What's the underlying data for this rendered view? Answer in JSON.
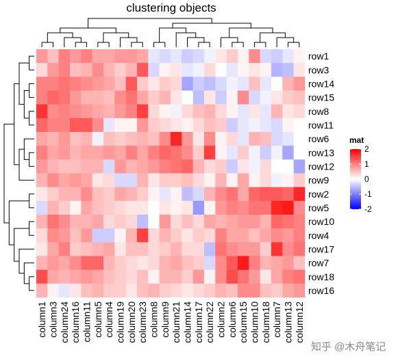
{
  "chart_data": {
    "type": "heatmap",
    "title": "clustering objects",
    "rows": [
      "row1",
      "row3",
      "row14",
      "row15",
      "row8",
      "row11",
      "row6",
      "row13",
      "row12",
      "row9",
      "row2",
      "row5",
      "row10",
      "row4",
      "row17",
      "row7",
      "row18",
      "row16"
    ],
    "columns": [
      "column1",
      "column3",
      "column24",
      "column16",
      "column11",
      "column5",
      "column4",
      "column19",
      "column20",
      "column23",
      "column8",
      "column9",
      "column21",
      "column14",
      "column17",
      "column22",
      "column2",
      "column6",
      "column15",
      "column10",
      "column18",
      "column7",
      "column13",
      "column12"
    ],
    "values": [
      [
        0.8,
        0.5,
        1.0,
        0.8,
        1.0,
        0.7,
        0.7,
        0.8,
        0.8,
        0.7,
        -0.2,
        -0.3,
        -0.2,
        -0.4,
        -0.3,
        -0.1,
        0.2,
        0.4,
        0.1,
        0.9,
        -0.3,
        -0.4,
        -0.2,
        0.1
      ],
      [
        0.3,
        0.8,
        1.0,
        0.5,
        0.6,
        0.9,
        0.6,
        0.4,
        0.6,
        1.3,
        -0.3,
        0.1,
        0.2,
        -0.2,
        -0.1,
        0.3,
        0.0,
        -0.2,
        0.1,
        0.2,
        0.1,
        -0.6,
        -0.5,
        0.2
      ],
      [
        1.0,
        1.0,
        1.1,
        1.0,
        0.9,
        0.8,
        0.7,
        0.5,
        1.3,
        0.4,
        0.2,
        0.4,
        0.3,
        -0.7,
        -0.4,
        -0.5,
        -0.3,
        -0.1,
        -0.2,
        0.5,
        -0.2,
        0.0,
        0.6,
        0.8
      ],
      [
        1.0,
        1.2,
        1.1,
        0.8,
        0.6,
        0.6,
        0.5,
        0.9,
        1.1,
        0.7,
        0.4,
        0.6,
        0.2,
        0.0,
        -0.5,
        0.2,
        -0.4,
        0.1,
        0.9,
        -0.3,
        -0.1,
        0.2,
        0.4,
        0.5
      ],
      [
        1.6,
        0.9,
        1.0,
        0.9,
        0.8,
        0.7,
        0.6,
        0.8,
        1.0,
        1.5,
        0.3,
        0.1,
        -0.1,
        0.3,
        0.5,
        0.6,
        0.3,
        0.1,
        -0.2,
        0.2,
        -0.2,
        0.6,
        0.2,
        0.3
      ],
      [
        1.2,
        1.0,
        1.0,
        1.3,
        1.3,
        0.9,
        -0.2,
        0.1,
        0.1,
        0.8,
        0.4,
        0.3,
        0.2,
        0.1,
        0.3,
        0.5,
        0.4,
        -0.4,
        -0.2,
        -0.1,
        -0.2,
        -0.3,
        0.1,
        0.0
      ],
      [
        0.7,
        0.6,
        0.8,
        0.5,
        0.6,
        -0.1,
        0.5,
        0.4,
        0.5,
        0.6,
        0.5,
        0.9,
        1.7,
        0.8,
        0.2,
        0.9,
        0.1,
        0.3,
        -0.2,
        0.6,
        0.5,
        -0.3,
        -0.2,
        0.0
      ],
      [
        1.0,
        0.7,
        0.8,
        0.6,
        0.7,
        0.7,
        0.8,
        0.7,
        1.0,
        0.7,
        1.0,
        1.2,
        1.1,
        0.9,
        0.4,
        1.5,
        0.1,
        -0.2,
        0.4,
        -0.1,
        -0.4,
        -0.1,
        -0.7,
        0.0
      ],
      [
        0.8,
        0.6,
        0.5,
        0.5,
        0.6,
        0.6,
        -0.3,
        0.8,
        0.6,
        0.7,
        0.8,
        1.0,
        1.1,
        1.2,
        0.6,
        0.3,
        0.4,
        -0.4,
        0.2,
        -0.1,
        0.3,
        0.0,
        0.0,
        -0.7
      ],
      [
        0.6,
        0.9,
        0.7,
        0.8,
        0.7,
        0.2,
        0.3,
        -0.3,
        -0.3,
        0.6,
        0.2,
        0.4,
        0.4,
        0.5,
        0.3,
        0.1,
        0.6,
        0.1,
        0.7,
        0.1,
        0.3,
        -0.1,
        0.1,
        0.4
      ],
      [
        0.2,
        0.4,
        0.6,
        0.6,
        0.9,
        0.5,
        0.4,
        0.7,
        0.6,
        0.4,
        0.1,
        -0.2,
        0.1,
        -0.5,
        -0.3,
        0.6,
        0.9,
        1.1,
        0.7,
        1.2,
        1.3,
        1.3,
        1.2,
        1.7
      ],
      [
        -0.3,
        0.6,
        0.4,
        0.1,
        0.7,
        0.5,
        0.4,
        0.3,
        0.2,
        0.2,
        0.0,
        0.2,
        0.1,
        0.2,
        -0.8,
        0.1,
        0.8,
        1.0,
        0.9,
        1.1,
        1.1,
        1.7,
        1.8,
        0.9
      ],
      [
        0.6,
        1.1,
        0.9,
        0.6,
        0.6,
        0.7,
        0.3,
        0.4,
        0.3,
        -0.5,
        0.0,
        0.8,
        0.3,
        0.5,
        0.3,
        0.7,
        0.6,
        0.7,
        0.8,
        0.8,
        0.6,
        1.2,
        1.1,
        1.0
      ],
      [
        0.3,
        0.9,
        0.8,
        0.5,
        0.8,
        -0.4,
        -0.4,
        0.1,
        0.6,
        1.5,
        0.3,
        0.6,
        0.4,
        0.2,
        0.4,
        0.3,
        1.0,
        0.7,
        0.7,
        0.5,
        0.7,
        0.9,
        0.8,
        1.0
      ],
      [
        0.2,
        0.7,
        1.0,
        0.4,
        0.5,
        0.6,
        0.7,
        0.2,
        0.5,
        0.5,
        0.3,
        0.4,
        0.6,
        0.3,
        0.3,
        -0.5,
        1.1,
        0.9,
        0.8,
        0.8,
        0.4,
        1.6,
        0.9,
        1.1
      ],
      [
        0.6,
        0.8,
        0.7,
        0.9,
        1.2,
        1.2,
        0.6,
        0.4,
        0.3,
        0.2,
        0.3,
        0.6,
        0.7,
        0.5,
        0.4,
        -0.3,
        0.9,
        1.3,
        1.8,
        1.0,
        0.6,
        0.7,
        0.8,
        0.5
      ],
      [
        1.4,
        0.7,
        0.6,
        0.7,
        0.8,
        0.7,
        0.5,
        0.4,
        0.3,
        0.5,
        0.1,
        0.6,
        0.6,
        0.4,
        0.8,
        0.1,
        0.9,
        1.4,
        1.1,
        0.8,
        0.2,
        0.7,
        1.0,
        1.1
      ],
      [
        0.6,
        0.1,
        -0.2,
        0.2,
        0.5,
        0.6,
        0.4,
        0.4,
        0.2,
        0.5,
        0.6,
        0.4,
        0.3,
        0.2,
        0.3,
        0.4,
        0.6,
        0.5,
        0.9,
        0.9,
        0.5,
        0.4,
        0.7,
        0.8
      ]
    ],
    "clim": [
      -2,
      2
    ],
    "colors": {
      "low": "#0000ff",
      "mid": "#ffffff",
      "high": "#ff0000"
    },
    "legend_title": "mat",
    "legend_ticks": [
      2,
      1,
      0,
      -1,
      -2
    ]
  },
  "watermark": "知乎 @木舟笔记"
}
